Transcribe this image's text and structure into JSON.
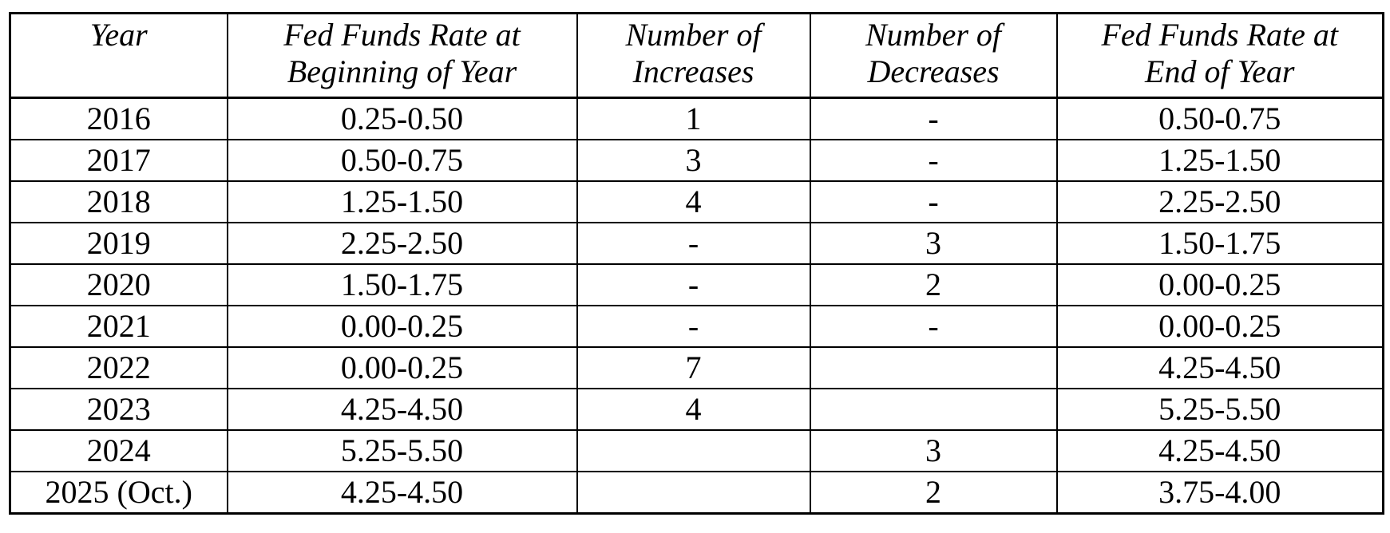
{
  "colors": {
    "background": "#ffffff",
    "border": "#000000",
    "text": "#000000"
  },
  "table": {
    "columns": [
      {
        "id": "year",
        "line1": "Year",
        "line2": ""
      },
      {
        "id": "begin_rate",
        "line1": "Fed Funds Rate at",
        "line2": "Beginning of Year"
      },
      {
        "id": "increases",
        "line1": "Number of",
        "line2": "Increases"
      },
      {
        "id": "decreases",
        "line1": "Number of",
        "line2": "Decreases"
      },
      {
        "id": "end_rate",
        "line1": "Fed Funds Rate at",
        "line2": "End of Year"
      }
    ],
    "rows": [
      {
        "year": "2016",
        "begin_rate": "0.25-0.50",
        "increases": "1",
        "decreases": "-",
        "end_rate": "0.50-0.75"
      },
      {
        "year": "2017",
        "begin_rate": "0.50-0.75",
        "increases": "3",
        "decreases": "-",
        "end_rate": "1.25-1.50"
      },
      {
        "year": "2018",
        "begin_rate": "1.25-1.50",
        "increases": "4",
        "decreases": "-",
        "end_rate": "2.25-2.50"
      },
      {
        "year": "2019",
        "begin_rate": "2.25-2.50",
        "increases": "-",
        "decreases": "3",
        "end_rate": "1.50-1.75"
      },
      {
        "year": "2020",
        "begin_rate": "1.50-1.75",
        "increases": "-",
        "decreases": "2",
        "end_rate": "0.00-0.25"
      },
      {
        "year": "2021",
        "begin_rate": "0.00-0.25",
        "increases": "-",
        "decreases": "-",
        "end_rate": "0.00-0.25"
      },
      {
        "year": "2022",
        "begin_rate": "0.00-0.25",
        "increases": "7",
        "decreases": "",
        "end_rate": "4.25-4.50"
      },
      {
        "year": "2023",
        "begin_rate": "4.25-4.50",
        "increases": "4",
        "decreases": "",
        "end_rate": "5.25-5.50"
      },
      {
        "year": "2024",
        "begin_rate": "5.25-5.50",
        "increases": "",
        "decreases": "3",
        "end_rate": "4.25-4.50"
      },
      {
        "year": "2025 (Oct.)",
        "begin_rate": "4.25-4.50",
        "increases": "",
        "decreases": "2",
        "end_rate": "3.75-4.00"
      }
    ]
  },
  "chart_data": {
    "type": "table",
    "title": "",
    "columns": [
      "Year",
      "Fed Funds Rate at Beginning of Year",
      "Number of Increases",
      "Number of Decreases",
      "Fed Funds Rate at End of Year"
    ],
    "rows": [
      [
        "2016",
        "0.25-0.50",
        "1",
        "-",
        "0.50-0.75"
      ],
      [
        "2017",
        "0.50-0.75",
        "3",
        "-",
        "1.25-1.50"
      ],
      [
        "2018",
        "1.25-1.50",
        "4",
        "-",
        "2.25-2.50"
      ],
      [
        "2019",
        "2.25-2.50",
        "-",
        "3",
        "1.50-1.75"
      ],
      [
        "2020",
        "1.50-1.75",
        "-",
        "2",
        "0.00-0.25"
      ],
      [
        "2021",
        "0.00-0.25",
        "-",
        "-",
        "0.00-0.25"
      ],
      [
        "2022",
        "0.00-0.25",
        "7",
        "",
        "4.25-4.50"
      ],
      [
        "2023",
        "4.25-4.50",
        "4",
        "",
        "5.25-5.50"
      ],
      [
        "2024",
        "5.25-5.50",
        "",
        "3",
        "4.25-4.50"
      ],
      [
        "2025 (Oct.)",
        "4.25-4.50",
        "",
        "2",
        "3.75-4.00"
      ]
    ]
  }
}
